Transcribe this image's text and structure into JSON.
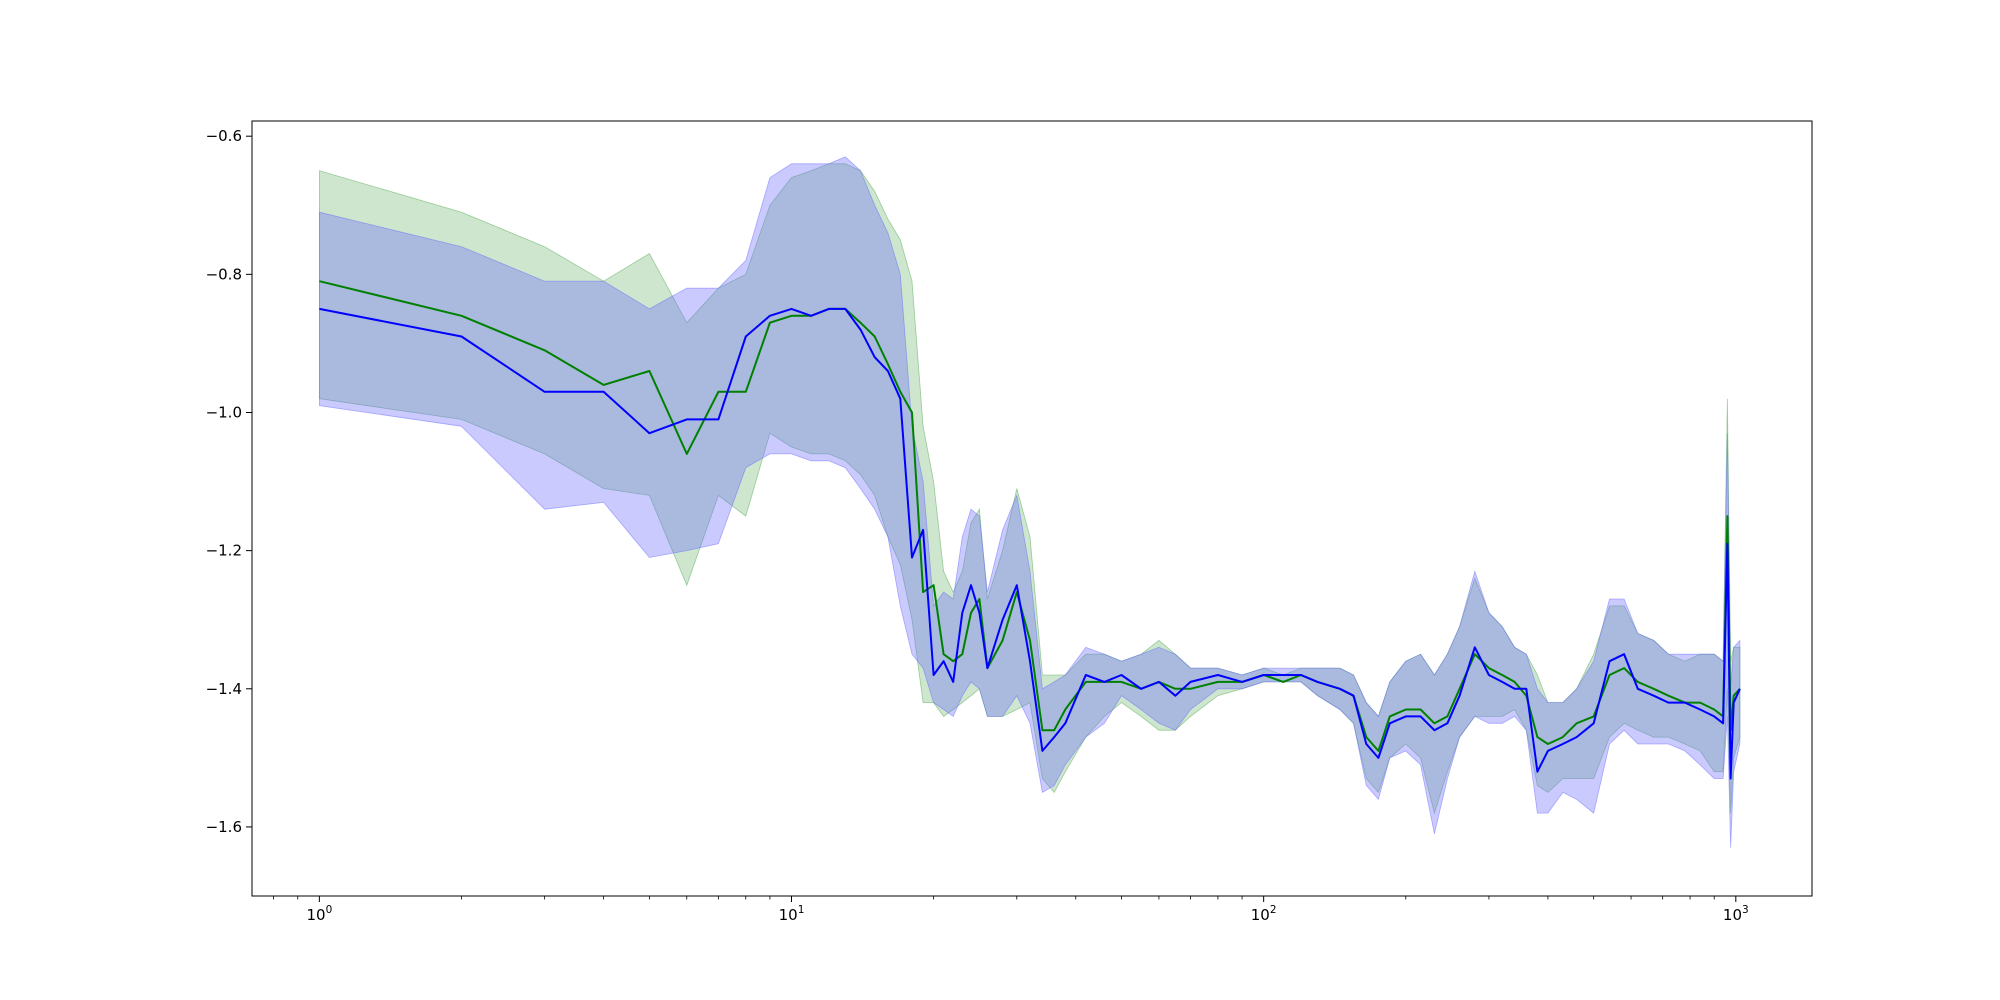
{
  "chart_data": {
    "type": "line",
    "title": "",
    "xlabel": "",
    "ylabel": "",
    "xscale": "log",
    "xlim": [
      0.72,
      1450
    ],
    "ylim": [
      -1.7,
      -0.578
    ],
    "grid": false,
    "legend": "none",
    "x_ticks": [
      {
        "value": 1,
        "base": "10",
        "exp": "0"
      },
      {
        "value": 10,
        "base": "10",
        "exp": "1"
      },
      {
        "value": 100,
        "base": "10",
        "exp": "2"
      },
      {
        "value": 1000,
        "base": "10",
        "exp": "3"
      }
    ],
    "y_ticks": [
      {
        "value": -0.6,
        "label": "−0.6"
      },
      {
        "value": -0.8,
        "label": "−0.8"
      },
      {
        "value": -1.0,
        "label": "−1.0"
      },
      {
        "value": -1.2,
        "label": "−1.2"
      },
      {
        "value": -1.4,
        "label": "−1.4"
      },
      {
        "value": -1.6,
        "label": "−1.6"
      }
    ],
    "series": [
      {
        "color": "#008000",
        "band_color": "#4ca64c",
        "band_opacity": 0.28,
        "points": [
          [
            1,
            -0.81,
            -0.65,
            -0.98
          ],
          [
            2,
            -0.86,
            -0.71,
            -1.01
          ],
          [
            3,
            -0.91,
            -0.76,
            -1.06
          ],
          [
            4,
            -0.96,
            -0.81,
            -1.11
          ],
          [
            5,
            -0.94,
            -0.77,
            -1.12
          ],
          [
            6,
            -1.06,
            -0.87,
            -1.25
          ],
          [
            7,
            -0.97,
            -0.82,
            -1.12
          ],
          [
            8,
            -0.97,
            -0.8,
            -1.15
          ],
          [
            9,
            -0.87,
            -0.7,
            -1.03
          ],
          [
            10,
            -0.86,
            -0.66,
            -1.05
          ],
          [
            11,
            -0.86,
            -0.65,
            -1.06
          ],
          [
            12,
            -0.85,
            -0.64,
            -1.06
          ],
          [
            13,
            -0.85,
            -0.64,
            -1.07
          ],
          [
            14,
            -0.87,
            -0.65,
            -1.09
          ],
          [
            15,
            -0.89,
            -0.68,
            -1.12
          ],
          [
            16,
            -0.93,
            -0.72,
            -1.18
          ],
          [
            17,
            -0.97,
            -0.75,
            -1.22
          ],
          [
            18,
            -1.0,
            -0.81,
            -1.3
          ],
          [
            19,
            -1.26,
            -1.02,
            -1.42
          ],
          [
            20,
            -1.25,
            -1.1,
            -1.42
          ],
          [
            21,
            -1.35,
            -1.23,
            -1.44
          ],
          [
            22,
            -1.36,
            -1.26,
            -1.43
          ],
          [
            23,
            -1.35,
            -1.23,
            -1.42
          ],
          [
            24,
            -1.29,
            -1.16,
            -1.41
          ],
          [
            25,
            -1.27,
            -1.14,
            -1.4
          ],
          [
            26,
            -1.37,
            -1.27,
            -1.44
          ],
          [
            28,
            -1.33,
            -1.2,
            -1.44
          ],
          [
            30,
            -1.26,
            -1.11,
            -1.43
          ],
          [
            32,
            -1.33,
            -1.18,
            -1.42
          ],
          [
            34,
            -1.46,
            -1.38,
            -1.53
          ],
          [
            36,
            -1.46,
            -1.38,
            -1.55
          ],
          [
            38,
            -1.43,
            -1.38,
            -1.52
          ],
          [
            42,
            -1.39,
            -1.35,
            -1.47
          ],
          [
            46,
            -1.39,
            -1.35,
            -1.44
          ],
          [
            50,
            -1.39,
            -1.36,
            -1.42
          ],
          [
            55,
            -1.4,
            -1.35,
            -1.44
          ],
          [
            60,
            -1.39,
            -1.33,
            -1.46
          ],
          [
            65,
            -1.4,
            -1.35,
            -1.46
          ],
          [
            70,
            -1.4,
            -1.37,
            -1.44
          ],
          [
            80,
            -1.39,
            -1.37,
            -1.41
          ],
          [
            90,
            -1.39,
            -1.38,
            -1.4
          ],
          [
            100,
            -1.38,
            -1.37,
            -1.39
          ],
          [
            110,
            -1.39,
            -1.38,
            -1.39
          ],
          [
            120,
            -1.38,
            -1.37,
            -1.39
          ],
          [
            130,
            -1.39,
            -1.37,
            -1.41
          ],
          [
            145,
            -1.4,
            -1.37,
            -1.43
          ],
          [
            155,
            -1.41,
            -1.38,
            -1.45
          ],
          [
            165,
            -1.47,
            -1.42,
            -1.53
          ],
          [
            175,
            -1.49,
            -1.44,
            -1.55
          ],
          [
            185,
            -1.44,
            -1.39,
            -1.5
          ],
          [
            200,
            -1.43,
            -1.36,
            -1.48
          ],
          [
            215,
            -1.43,
            -1.35,
            -1.5
          ],
          [
            230,
            -1.45,
            -1.38,
            -1.58
          ],
          [
            245,
            -1.44,
            -1.35,
            -1.52
          ],
          [
            260,
            -1.4,
            -1.31,
            -1.47
          ],
          [
            280,
            -1.35,
            -1.24,
            -1.44
          ],
          [
            300,
            -1.37,
            -1.29,
            -1.44
          ],
          [
            320,
            -1.38,
            -1.31,
            -1.44
          ],
          [
            340,
            -1.39,
            -1.34,
            -1.43
          ],
          [
            360,
            -1.41,
            -1.35,
            -1.46
          ],
          [
            380,
            -1.47,
            -1.38,
            -1.54
          ],
          [
            400,
            -1.48,
            -1.42,
            -1.55
          ],
          [
            430,
            -1.47,
            -1.42,
            -1.53
          ],
          [
            460,
            -1.45,
            -1.4,
            -1.53
          ],
          [
            500,
            -1.44,
            -1.35,
            -1.53
          ],
          [
            540,
            -1.38,
            -1.28,
            -1.47
          ],
          [
            580,
            -1.37,
            -1.28,
            -1.45
          ],
          [
            620,
            -1.39,
            -1.32,
            -1.46
          ],
          [
            670,
            -1.4,
            -1.33,
            -1.47
          ],
          [
            720,
            -1.41,
            -1.35,
            -1.47
          ],
          [
            780,
            -1.42,
            -1.36,
            -1.48
          ],
          [
            840,
            -1.42,
            -1.35,
            -1.49
          ],
          [
            900,
            -1.43,
            -1.35,
            -1.52
          ],
          [
            940,
            -1.44,
            -1.36,
            -1.52
          ],
          [
            960,
            -1.15,
            -0.98,
            -1.4
          ],
          [
            975,
            -1.46,
            -1.36,
            -1.58
          ],
          [
            990,
            -1.41,
            -1.34,
            -1.5
          ],
          [
            1020,
            -1.4,
            -1.34,
            -1.47
          ]
        ]
      },
      {
        "color": "#0000ff",
        "band_color": "#6666ff",
        "band_opacity": 0.35,
        "points": [
          [
            1,
            -0.85,
            -0.71,
            -0.99
          ],
          [
            2,
            -0.89,
            -0.76,
            -1.02
          ],
          [
            3,
            -0.97,
            -0.81,
            -1.14
          ],
          [
            4,
            -0.97,
            -0.81,
            -1.13
          ],
          [
            5,
            -1.03,
            -0.85,
            -1.21
          ],
          [
            6,
            -1.01,
            -0.82,
            -1.2
          ],
          [
            7,
            -1.01,
            -0.82,
            -1.19
          ],
          [
            8,
            -0.89,
            -0.78,
            -1.08
          ],
          [
            9,
            -0.86,
            -0.66,
            -1.06
          ],
          [
            10,
            -0.85,
            -0.64,
            -1.06
          ],
          [
            11,
            -0.86,
            -0.64,
            -1.07
          ],
          [
            12,
            -0.85,
            -0.64,
            -1.07
          ],
          [
            13,
            -0.85,
            -0.63,
            -1.08
          ],
          [
            14,
            -0.88,
            -0.65,
            -1.11
          ],
          [
            15,
            -0.92,
            -0.7,
            -1.14
          ],
          [
            16,
            -0.94,
            -0.74,
            -1.18
          ],
          [
            17,
            -0.98,
            -0.8,
            -1.28
          ],
          [
            18,
            -1.21,
            -1.02,
            -1.35
          ],
          [
            19,
            -1.17,
            -1.1,
            -1.37
          ],
          [
            20,
            -1.38,
            -1.28,
            -1.42
          ],
          [
            21,
            -1.36,
            -1.26,
            -1.43
          ],
          [
            22,
            -1.39,
            -1.27,
            -1.44
          ],
          [
            23,
            -1.29,
            -1.18,
            -1.41
          ],
          [
            24,
            -1.25,
            -1.14,
            -1.39
          ],
          [
            25,
            -1.29,
            -1.15,
            -1.4
          ],
          [
            26,
            -1.37,
            -1.26,
            -1.44
          ],
          [
            28,
            -1.3,
            -1.17,
            -1.44
          ],
          [
            30,
            -1.25,
            -1.12,
            -1.41
          ],
          [
            32,
            -1.36,
            -1.23,
            -1.45
          ],
          [
            34,
            -1.49,
            -1.4,
            -1.55
          ],
          [
            36,
            -1.47,
            -1.39,
            -1.54
          ],
          [
            38,
            -1.45,
            -1.38,
            -1.51
          ],
          [
            42,
            -1.38,
            -1.34,
            -1.47
          ],
          [
            46,
            -1.39,
            -1.35,
            -1.45
          ],
          [
            50,
            -1.38,
            -1.36,
            -1.41
          ],
          [
            55,
            -1.4,
            -1.35,
            -1.43
          ],
          [
            60,
            -1.39,
            -1.34,
            -1.45
          ],
          [
            65,
            -1.41,
            -1.35,
            -1.46
          ],
          [
            70,
            -1.39,
            -1.37,
            -1.43
          ],
          [
            80,
            -1.38,
            -1.37,
            -1.4
          ],
          [
            90,
            -1.39,
            -1.38,
            -1.4
          ],
          [
            100,
            -1.38,
            -1.37,
            -1.39
          ],
          [
            110,
            -1.38,
            -1.37,
            -1.39
          ],
          [
            120,
            -1.38,
            -1.37,
            -1.39
          ],
          [
            130,
            -1.39,
            -1.37,
            -1.41
          ],
          [
            145,
            -1.4,
            -1.37,
            -1.43
          ],
          [
            155,
            -1.41,
            -1.38,
            -1.45
          ],
          [
            165,
            -1.48,
            -1.42,
            -1.54
          ],
          [
            175,
            -1.5,
            -1.44,
            -1.56
          ],
          [
            185,
            -1.45,
            -1.39,
            -1.5
          ],
          [
            200,
            -1.44,
            -1.36,
            -1.49
          ],
          [
            215,
            -1.44,
            -1.35,
            -1.51
          ],
          [
            230,
            -1.46,
            -1.38,
            -1.61
          ],
          [
            245,
            -1.45,
            -1.35,
            -1.53
          ],
          [
            260,
            -1.41,
            -1.31,
            -1.47
          ],
          [
            280,
            -1.34,
            -1.23,
            -1.44
          ],
          [
            300,
            -1.38,
            -1.29,
            -1.45
          ],
          [
            320,
            -1.39,
            -1.31,
            -1.45
          ],
          [
            340,
            -1.4,
            -1.34,
            -1.44
          ],
          [
            360,
            -1.4,
            -1.35,
            -1.46
          ],
          [
            380,
            -1.52,
            -1.4,
            -1.58
          ],
          [
            400,
            -1.49,
            -1.42,
            -1.58
          ],
          [
            430,
            -1.48,
            -1.42,
            -1.55
          ],
          [
            460,
            -1.47,
            -1.4,
            -1.56
          ],
          [
            500,
            -1.45,
            -1.36,
            -1.58
          ],
          [
            540,
            -1.36,
            -1.27,
            -1.48
          ],
          [
            580,
            -1.35,
            -1.27,
            -1.46
          ],
          [
            620,
            -1.4,
            -1.32,
            -1.48
          ],
          [
            670,
            -1.41,
            -1.33,
            -1.48
          ],
          [
            720,
            -1.42,
            -1.35,
            -1.48
          ],
          [
            780,
            -1.42,
            -1.35,
            -1.49
          ],
          [
            840,
            -1.43,
            -1.35,
            -1.51
          ],
          [
            900,
            -1.44,
            -1.35,
            -1.53
          ],
          [
            940,
            -1.45,
            -1.36,
            -1.53
          ],
          [
            960,
            -1.19,
            -1.03,
            -1.44
          ],
          [
            975,
            -1.53,
            -1.4,
            -1.63
          ],
          [
            990,
            -1.42,
            -1.34,
            -1.52
          ],
          [
            1020,
            -1.4,
            -1.33,
            -1.48
          ]
        ]
      }
    ]
  }
}
